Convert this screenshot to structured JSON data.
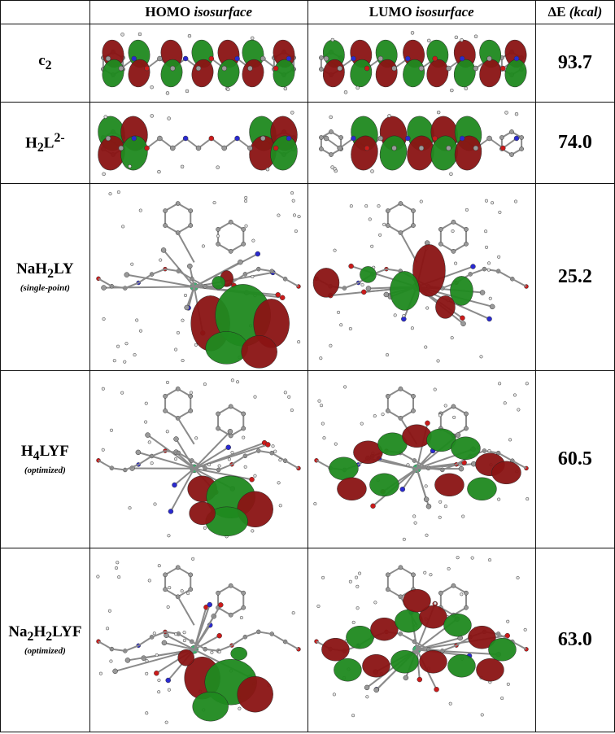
{
  "header": {
    "col1": "",
    "col2_main": "HOMO",
    "col2_italic": "isosurface",
    "col3_main": "LUMO",
    "col3_italic": "isosurface",
    "col4_main": "ΔE",
    "col4_italic": "(kcal)"
  },
  "rows": [
    {
      "name_base": "c",
      "name_sub": "2",
      "name_tail": "",
      "note": "",
      "value": "93.7"
    },
    {
      "name_base": "H",
      "name_sub": "2",
      "name_tail": "L",
      "name_sup": "2-",
      "note": "",
      "value": "74.0"
    },
    {
      "name_base": "NaH",
      "name_sub": "2",
      "name_tail": "LY",
      "note": "(single-point)",
      "value": "25.2"
    },
    {
      "name_base": "H",
      "name_sub": "4",
      "name_tail": "LYF",
      "note": "(optimized)",
      "value": "60.5"
    },
    {
      "name_base": "Na",
      "name_sub": "2",
      "name_mid": "H",
      "name_sub2": "2",
      "name_tail": "LYF",
      "note": "(optimized)",
      "value": "63.0"
    }
  ],
  "colors": {
    "lobe_red": "#8b1414",
    "lobe_green": "#1f8a1f",
    "atom_grey": "#9a9a9a",
    "atom_blue": "#2a2ad0",
    "atom_red": "#cc1a1a",
    "atom_pink": "#d89a9a"
  }
}
